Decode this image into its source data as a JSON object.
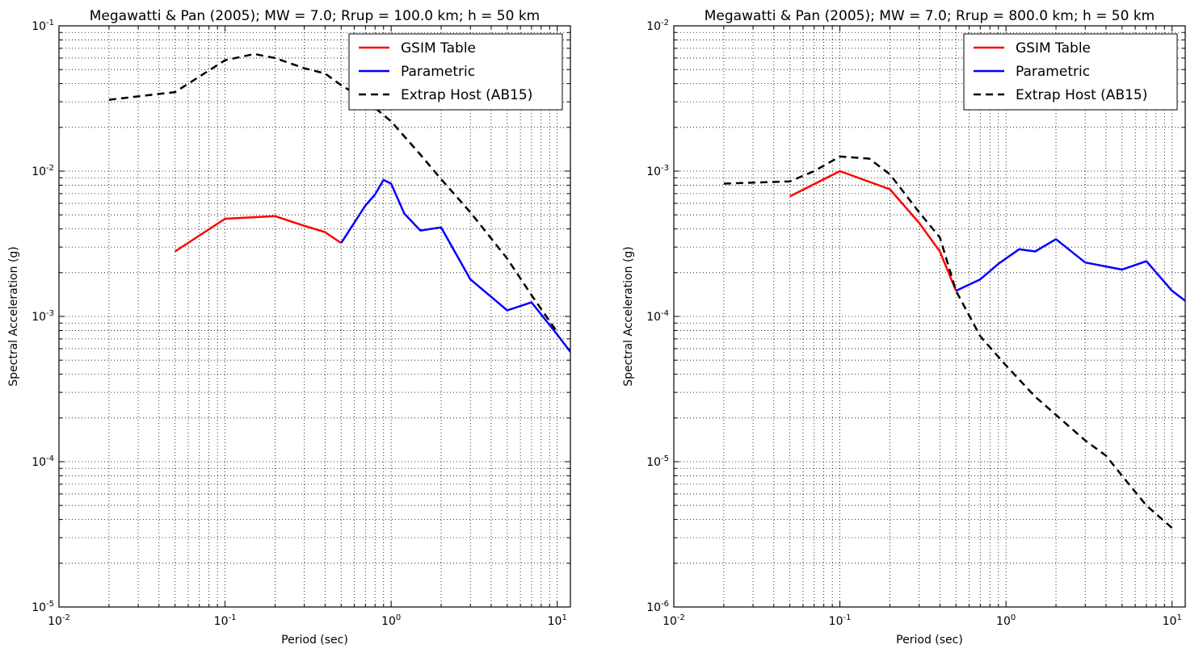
{
  "chart_data": [
    {
      "type": "line",
      "title": "Megawatti & Pan (2005); MW = 7.0; Rrup = 100.0 km; h = 50 km",
      "xlabel": "Period (sec)",
      "ylabel": "Spectral Acceleration (g)",
      "xscale": "log",
      "yscale": "log",
      "xlim": [
        0.01,
        12
      ],
      "ylim": [
        1e-05,
        0.1
      ],
      "xticks": [
        {
          "base": "10",
          "exp": "-2"
        },
        {
          "base": "10",
          "exp": "-1"
        },
        {
          "base": "10",
          "exp": "0"
        },
        {
          "base": "10",
          "exp": "1"
        }
      ],
      "yticks": [
        {
          "base": "10",
          "exp": "-5"
        },
        {
          "base": "10",
          "exp": "-4"
        },
        {
          "base": "10",
          "exp": "-3"
        },
        {
          "base": "10",
          "exp": "-2"
        },
        {
          "base": "10",
          "exp": "-1"
        }
      ],
      "grid": "dotted, major and minor",
      "legend_position": "top-right",
      "series": [
        {
          "name": "GSIM Table",
          "color": "#ff0000",
          "style": "solid",
          "x": [
            0.05,
            0.1,
            0.2,
            0.3,
            0.4,
            0.5
          ],
          "y": [
            0.0028,
            0.0047,
            0.0049,
            0.0042,
            0.0038,
            0.0032
          ]
        },
        {
          "name": "Parametric",
          "color": "#0000ff",
          "style": "solid",
          "x": [
            0.5,
            0.7,
            0.8,
            0.9,
            1.0,
            1.2,
            1.5,
            2.0,
            3.0,
            5.0,
            7.0,
            10.0,
            12.0
          ],
          "y": [
            0.0032,
            0.0058,
            0.0069,
            0.0087,
            0.0082,
            0.0051,
            0.0039,
            0.0041,
            0.0018,
            0.0011,
            0.00125,
            0.00075,
            0.00057
          ]
        },
        {
          "name": "Extrap Host (AB15)",
          "color": "#000000",
          "style": "dashed",
          "x": [
            0.02,
            0.05,
            0.1,
            0.15,
            0.2,
            0.3,
            0.4,
            0.5,
            0.7,
            1.0,
            1.5,
            2.0,
            3.0,
            5.0,
            7.0,
            10.0
          ],
          "y": [
            0.031,
            0.035,
            0.058,
            0.064,
            0.06,
            0.051,
            0.047,
            0.039,
            0.031,
            0.022,
            0.013,
            0.0088,
            0.0052,
            0.0025,
            0.0014,
            0.00078
          ]
        }
      ]
    },
    {
      "type": "line",
      "title": "Megawatti & Pan (2005); MW = 7.0; Rrup = 800.0 km; h = 50 km",
      "xlabel": "Period (sec)",
      "ylabel": "Spectral Acceleration (g)",
      "xscale": "log",
      "yscale": "log",
      "xlim": [
        0.01,
        12
      ],
      "ylim": [
        1e-06,
        0.01
      ],
      "xticks": [
        {
          "base": "10",
          "exp": "-2"
        },
        {
          "base": "10",
          "exp": "-1"
        },
        {
          "base": "10",
          "exp": "0"
        },
        {
          "base": "10",
          "exp": "1"
        }
      ],
      "yticks": [
        {
          "base": "10",
          "exp": "-6"
        },
        {
          "base": "10",
          "exp": "-5"
        },
        {
          "base": "10",
          "exp": "-4"
        },
        {
          "base": "10",
          "exp": "-3"
        },
        {
          "base": "10",
          "exp": "-2"
        }
      ],
      "grid": "dotted, major and minor",
      "legend_position": "top-right",
      "series": [
        {
          "name": "GSIM Table",
          "color": "#ff0000",
          "style": "solid",
          "x": [
            0.05,
            0.1,
            0.2,
            0.3,
            0.4,
            0.5
          ],
          "y": [
            0.00067,
            0.001,
            0.00075,
            0.00044,
            0.00028,
            0.00015
          ]
        },
        {
          "name": "Parametric",
          "color": "#0000ff",
          "style": "solid",
          "x": [
            0.5,
            0.7,
            0.9,
            1.2,
            1.5,
            2.0,
            3.0,
            5.0,
            7.0,
            10.0,
            12.0
          ],
          "y": [
            0.00015,
            0.00018,
            0.00023,
            0.00029,
            0.00028,
            0.00034,
            0.000235,
            0.00021,
            0.00024,
            0.00015,
            0.000128
          ]
        },
        {
          "name": "Extrap Host (AB15)",
          "color": "#000000",
          "style": "dashed",
          "x": [
            0.02,
            0.05,
            0.07,
            0.1,
            0.15,
            0.2,
            0.3,
            0.4,
            0.5,
            0.7,
            1.0,
            1.5,
            2.0,
            3.0,
            4.0,
            5.0,
            7.0,
            10.0
          ],
          "y": [
            0.00082,
            0.00085,
            0.001,
            0.00126,
            0.00122,
            0.00095,
            0.00052,
            0.00035,
            0.00015,
            7.3e-05,
            4.6e-05,
            2.8e-05,
            2.1e-05,
            1.4e-05,
            1.1e-05,
            8e-06,
            5e-06,
            3.5e-06
          ]
        }
      ]
    }
  ]
}
